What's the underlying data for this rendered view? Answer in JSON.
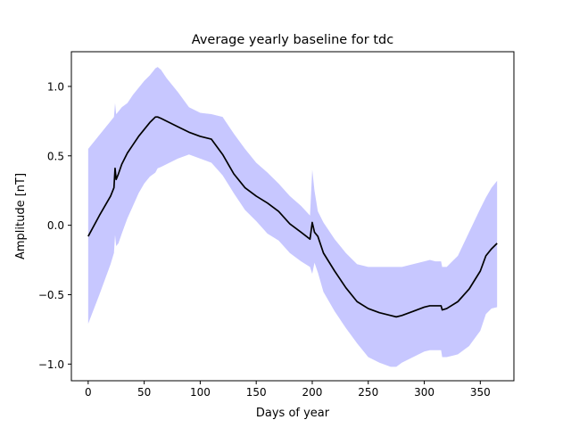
{
  "chart_data": {
    "type": "line",
    "title": "Average yearly baseline for tdc",
    "xlabel": "Days of year",
    "ylabel": "Amplitude [nT]",
    "xlim": [
      -15,
      380
    ],
    "ylim": [
      -1.12,
      1.25
    ],
    "xticks": [
      0,
      50,
      100,
      150,
      200,
      250,
      300,
      350
    ],
    "xtick_labels": [
      "0",
      "50",
      "100",
      "150",
      "200",
      "250",
      "300",
      "350"
    ],
    "yticks": [
      -1.0,
      -0.5,
      0.0,
      0.5,
      1.0
    ],
    "ytick_labels": [
      "−1.0",
      "−0.5",
      "0.0",
      "0.5",
      "1.0"
    ],
    "grid": false,
    "colors": {
      "line": "#000000",
      "band": "#0000ff",
      "band_opacity": 0.22
    },
    "series": [
      {
        "role": "mean",
        "x": [
          0,
          10,
          20,
          23,
          24,
          25,
          27,
          30,
          35,
          40,
          45,
          50,
          55,
          60,
          62,
          65,
          70,
          80,
          90,
          100,
          110,
          120,
          130,
          140,
          150,
          160,
          170,
          180,
          190,
          198,
          200,
          202,
          205,
          210,
          220,
          230,
          240,
          250,
          260,
          270,
          275,
          280,
          290,
          300,
          305,
          310,
          315,
          316,
          320,
          330,
          340,
          350,
          355,
          360,
          365
        ],
        "y": [
          -0.08,
          0.07,
          0.21,
          0.27,
          0.41,
          0.33,
          0.37,
          0.44,
          0.52,
          0.58,
          0.64,
          0.69,
          0.74,
          0.78,
          0.78,
          0.77,
          0.75,
          0.71,
          0.67,
          0.64,
          0.62,
          0.51,
          0.37,
          0.27,
          0.21,
          0.16,
          0.1,
          0.01,
          -0.05,
          -0.1,
          0.02,
          -0.05,
          -0.08,
          -0.2,
          -0.33,
          -0.45,
          -0.55,
          -0.6,
          -0.63,
          -0.65,
          -0.66,
          -0.65,
          -0.62,
          -0.59,
          -0.58,
          -0.58,
          -0.58,
          -0.61,
          -0.6,
          -0.55,
          -0.46,
          -0.33,
          -0.22,
          -0.17,
          -0.13
        ]
      }
    ],
    "band": {
      "x": [
        0,
        10,
        20,
        23,
        24,
        25,
        27,
        30,
        35,
        40,
        45,
        50,
        55,
        60,
        62,
        65,
        70,
        80,
        90,
        100,
        110,
        120,
        130,
        140,
        150,
        160,
        170,
        180,
        190,
        198,
        200,
        202,
        205,
        210,
        220,
        230,
        240,
        250,
        260,
        270,
        275,
        280,
        290,
        300,
        305,
        310,
        315,
        316,
        320,
        330,
        340,
        350,
        355,
        360,
        365
      ],
      "upper": [
        0.55,
        0.65,
        0.75,
        0.78,
        0.88,
        0.8,
        0.82,
        0.85,
        0.88,
        0.94,
        0.99,
        1.04,
        1.08,
        1.13,
        1.14,
        1.12,
        1.06,
        0.96,
        0.85,
        0.81,
        0.8,
        0.78,
        0.66,
        0.55,
        0.45,
        0.38,
        0.3,
        0.21,
        0.14,
        0.07,
        0.4,
        0.25,
        0.1,
        0.02,
        -0.1,
        -0.2,
        -0.28,
        -0.3,
        -0.3,
        -0.3,
        -0.3,
        -0.3,
        -0.28,
        -0.26,
        -0.25,
        -0.26,
        -0.26,
        -0.3,
        -0.3,
        -0.22,
        -0.05,
        0.12,
        0.2,
        0.27,
        0.32
      ],
      "lower": [
        -0.71,
        -0.5,
        -0.28,
        -0.2,
        -0.07,
        -0.15,
        -0.13,
        -0.06,
        0.05,
        0.14,
        0.23,
        0.3,
        0.35,
        0.38,
        0.41,
        0.42,
        0.44,
        0.48,
        0.51,
        0.48,
        0.45,
        0.36,
        0.23,
        0.11,
        0.03,
        -0.06,
        -0.11,
        -0.2,
        -0.26,
        -0.3,
        -0.35,
        -0.27,
        -0.34,
        -0.48,
        -0.62,
        -0.74,
        -0.85,
        -0.95,
        -0.99,
        -1.02,
        -1.02,
        -0.99,
        -0.95,
        -0.91,
        -0.9,
        -0.9,
        -0.9,
        -0.95,
        -0.95,
        -0.93,
        -0.87,
        -0.76,
        -0.64,
        -0.6,
        -0.59
      ]
    }
  }
}
